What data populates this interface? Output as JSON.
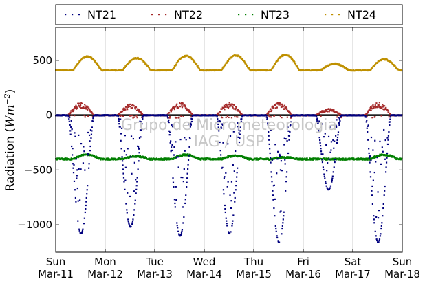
{
  "chart_data": {
    "type": "scatter",
    "title": "",
    "xlabel": "",
    "ylabel": "Radiation (Wm⁻²)",
    "ylabel_main": "Radiation (",
    "ylabel_unit": "Wm",
    "ylabel_exp": "−2",
    "ylabel_close": ")",
    "ylim": [
      -1250,
      800
    ],
    "xlim": [
      "2012-03-11",
      "2012-03-18"
    ],
    "yticks": [
      {
        "value": 500,
        "label": "500"
      },
      {
        "value": 0,
        "label": "0"
      },
      {
        "value": -500,
        "label": "−500"
      },
      {
        "value": -1000,
        "label": "−1000"
      }
    ],
    "xticks": [
      {
        "day": "Sun",
        "date": "Mar-11"
      },
      {
        "day": "Mon",
        "date": "Mar-12"
      },
      {
        "day": "Tue",
        "date": "Mar-13"
      },
      {
        "day": "Wed",
        "date": "Mar-14"
      },
      {
        "day": "Thu",
        "date": "Mar-15"
      },
      {
        "day": "Fri",
        "date": "Mar-16"
      },
      {
        "day": "Sat",
        "date": "Mar-17"
      },
      {
        "day": "Sun",
        "date": "Mar-18"
      }
    ],
    "grid": "vertical",
    "zero_line": true,
    "legend_position": "top",
    "watermark": [
      "Grupo de Micrometeorologia",
      "IAG / USP"
    ],
    "series": [
      {
        "name": "NT21",
        "color": "#00007f",
        "baseline": 0,
        "daily_peaks": [
          -1080,
          -1020,
          -1100,
          -1080,
          -1160,
          -680,
          -1160
        ],
        "peak_day_fraction": 0.65
      },
      {
        "name": "NT22",
        "color": "#a52a2a",
        "baseline": 0,
        "daily_peaks": [
          115,
          100,
          120,
          115,
          115,
          60,
          120
        ],
        "peak_day_fraction": 0.6
      },
      {
        "name": "NT23",
        "color": "#007f00",
        "baseline": -400,
        "daily_peaks": [
          -360,
          -375,
          -360,
          -370,
          -385,
          -400,
          -360
        ],
        "peak_day_fraction": 0.6
      },
      {
        "name": "NT24",
        "color": "#bf9000",
        "baseline": 410,
        "daily_peaks": [
          535,
          520,
          540,
          545,
          550,
          470,
          510
        ],
        "peak_day_fraction": 0.6
      }
    ]
  }
}
